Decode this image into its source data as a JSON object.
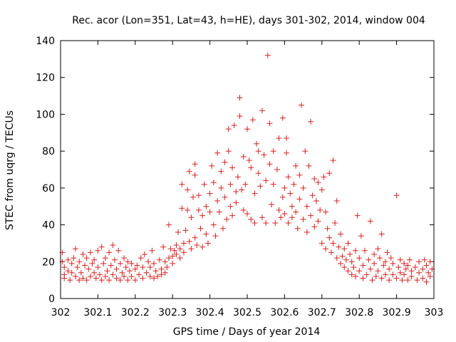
{
  "chart_data": {
    "type": "scatter",
    "title": "Rec. acor (Lon=351, Lat=43, h=HE), days 301-302, 2014, window 004",
    "xlabel": "GPS time / Days of year 2014",
    "ylabel": "STEC from uqrg / TECUs",
    "xlim": [
      302,
      303
    ],
    "ylim": [
      0,
      140
    ],
    "xticks": [
      302,
      302.1,
      302.2,
      302.3,
      302.4,
      302.5,
      302.6,
      302.7,
      302.8,
      302.9,
      303
    ],
    "xtick_labels": [
      "302",
      "302.1",
      "302.2",
      "302.3",
      "302.4",
      "302.5",
      "302.6",
      "302.7",
      "302.8",
      "302.9",
      "303"
    ],
    "yticks": [
      0,
      20,
      40,
      60,
      80,
      100,
      120,
      140
    ],
    "ytick_labels": [
      "0",
      "20",
      "40",
      "60",
      "80",
      "100",
      "120",
      "140"
    ],
    "grid": false,
    "marker": "+",
    "color": "#d62020",
    "series": [
      {
        "name": "STEC",
        "points": [
          [
            302.005,
            25
          ],
          [
            302.005,
            20
          ],
          [
            302.01,
            17
          ],
          [
            302.01,
            13
          ],
          [
            302.01,
            11
          ],
          [
            302.02,
            21
          ],
          [
            302.02,
            15
          ],
          [
            302.025,
            10
          ],
          [
            302.03,
            19
          ],
          [
            302.03,
            14
          ],
          [
            302.035,
            22
          ],
          [
            302.04,
            27
          ],
          [
            302.04,
            12
          ],
          [
            302.045,
            17
          ],
          [
            302.05,
            20
          ],
          [
            302.05,
            10
          ],
          [
            302.055,
            14
          ],
          [
            302.06,
            24
          ],
          [
            302.06,
            11
          ],
          [
            302.065,
            18
          ],
          [
            302.07,
            22
          ],
          [
            302.07,
            10
          ],
          [
            302.075,
            16
          ],
          [
            302.08,
            25
          ],
          [
            302.08,
            12
          ],
          [
            302.085,
            19
          ],
          [
            302.09,
            21
          ],
          [
            302.09,
            14
          ],
          [
            302.095,
            11
          ],
          [
            302.1,
            26
          ],
          [
            302.1,
            17
          ],
          [
            302.105,
            13
          ],
          [
            302.11,
            28
          ],
          [
            302.11,
            10
          ],
          [
            302.115,
            19
          ],
          [
            302.12,
            22
          ],
          [
            302.12,
            12
          ],
          [
            302.125,
            15
          ],
          [
            302.13,
            25
          ],
          [
            302.13,
            10
          ],
          [
            302.135,
            18
          ],
          [
            302.14,
            29
          ],
          [
            302.14,
            13
          ],
          [
            302.145,
            21
          ],
          [
            302.15,
            16
          ],
          [
            302.15,
            11
          ],
          [
            302.155,
            26
          ],
          [
            302.16,
            19
          ],
          [
            302.16,
            10
          ],
          [
            302.165,
            14
          ],
          [
            302.17,
            22
          ],
          [
            302.17,
            12
          ],
          [
            302.175,
            17
          ],
          [
            302.18,
            20
          ],
          [
            302.18,
            10
          ],
          [
            302.185,
            15
          ],
          [
            302.19,
            19
          ],
          [
            302.19,
            12
          ],
          [
            302.2,
            16
          ],
          [
            302.2,
            10
          ],
          [
            302.205,
            18
          ],
          [
            302.21,
            13
          ],
          [
            302.215,
            22
          ],
          [
            302.22,
            11
          ],
          [
            302.22,
            17
          ],
          [
            302.225,
            24
          ],
          [
            302.23,
            14
          ],
          [
            302.235,
            20
          ],
          [
            302.24,
            12
          ],
          [
            302.24,
            17
          ],
          [
            302.245,
            26
          ],
          [
            302.25,
            19
          ],
          [
            302.25,
            11
          ],
          [
            302.255,
            15
          ],
          [
            302.26,
            12
          ],
          [
            302.265,
            21
          ],
          [
            302.27,
            16
          ],
          [
            302.27,
            13
          ],
          [
            302.275,
            28
          ],
          [
            302.28,
            20
          ],
          [
            302.28,
            14
          ],
          [
            302.285,
            17
          ],
          [
            302.29,
            40
          ],
          [
            302.29,
            22
          ],
          [
            302.295,
            27
          ],
          [
            302.3,
            19
          ],
          [
            302.3,
            23
          ],
          [
            302.305,
            26
          ],
          [
            302.31,
            24
          ],
          [
            302.31,
            29
          ],
          [
            302.315,
            36
          ],
          [
            302.32,
            27
          ],
          [
            302.32,
            22
          ],
          [
            302.325,
            49
          ],
          [
            302.325,
            62
          ],
          [
            302.33,
            30
          ],
          [
            302.33,
            25
          ],
          [
            302.335,
            37
          ],
          [
            302.34,
            59
          ],
          [
            302.34,
            48
          ],
          [
            302.345,
            31
          ],
          [
            302.345,
            69
          ],
          [
            302.35,
            27
          ],
          [
            302.35,
            44
          ],
          [
            302.355,
            55
          ],
          [
            302.36,
            73
          ],
          [
            302.36,
            33
          ],
          [
            302.36,
            67
          ],
          [
            302.365,
            29
          ],
          [
            302.37,
            48
          ],
          [
            302.37,
            56
          ],
          [
            302.375,
            38
          ],
          [
            302.38,
            28
          ],
          [
            302.38,
            45
          ],
          [
            302.385,
            62
          ],
          [
            302.39,
            50
          ],
          [
            302.39,
            35
          ],
          [
            302.395,
            30
          ],
          [
            302.4,
            57
          ],
          [
            302.4,
            47
          ],
          [
            302.405,
            72
          ],
          [
            302.41,
            63
          ],
          [
            302.41,
            40
          ],
          [
            302.415,
            34
          ],
          [
            302.42,
            79
          ],
          [
            302.42,
            53
          ],
          [
            302.425,
            47
          ],
          [
            302.43,
            69
          ],
          [
            302.43,
            60
          ],
          [
            302.435,
            38
          ],
          [
            302.44,
            74
          ],
          [
            302.44,
            55
          ],
          [
            302.445,
            43
          ],
          [
            302.45,
            92
          ],
          [
            302.45,
            80
          ],
          [
            302.455,
            62
          ],
          [
            302.455,
            50
          ],
          [
            302.46,
            71
          ],
          [
            302.46,
            45
          ],
          [
            302.465,
            94
          ],
          [
            302.47,
            58
          ],
          [
            302.47,
            52
          ],
          [
            302.475,
            66
          ],
          [
            302.48,
            99
          ],
          [
            302.48,
            109
          ],
          [
            302.485,
            59
          ],
          [
            302.49,
            77
          ],
          [
            302.49,
            48
          ],
          [
            302.495,
            62
          ],
          [
            302.5,
            92
          ],
          [
            302.5,
            46
          ],
          [
            302.505,
            75
          ],
          [
            302.51,
            71
          ],
          [
            302.51,
            43
          ],
          [
            302.515,
            97
          ],
          [
            302.52,
            57
          ],
          [
            302.52,
            41
          ],
          [
            302.525,
            84
          ],
          [
            302.53,
            80
          ],
          [
            302.53,
            68
          ],
          [
            302.535,
            61
          ],
          [
            302.54,
            102
          ],
          [
            302.54,
            44
          ],
          [
            302.545,
            78
          ],
          [
            302.55,
            64
          ],
          [
            302.55,
            41
          ],
          [
            302.555,
            132
          ],
          [
            302.56,
            95
          ],
          [
            302.56,
            73
          ],
          [
            302.565,
            51
          ],
          [
            302.57,
            80
          ],
          [
            302.57,
            62
          ],
          [
            302.575,
            41
          ],
          [
            302.58,
            70
          ],
          [
            302.585,
            87
          ],
          [
            302.585,
            48
          ],
          [
            302.59,
            44
          ],
          [
            302.595,
            98
          ],
          [
            302.595,
            55
          ],
          [
            302.6,
            60
          ],
          [
            302.6,
            46
          ],
          [
            302.605,
            79
          ],
          [
            302.605,
            87
          ],
          [
            302.61,
            66
          ],
          [
            302.61,
            41
          ],
          [
            302.615,
            57
          ],
          [
            302.62,
            50
          ],
          [
            302.62,
            44
          ],
          [
            302.625,
            62
          ],
          [
            302.63,
            72
          ],
          [
            302.63,
            47
          ],
          [
            302.635,
            38
          ],
          [
            302.64,
            67
          ],
          [
            302.64,
            54
          ],
          [
            302.645,
            105
          ],
          [
            302.65,
            60
          ],
          [
            302.65,
            43
          ],
          [
            302.655,
            80
          ],
          [
            302.66,
            50
          ],
          [
            302.66,
            36
          ],
          [
            302.665,
            72
          ],
          [
            302.67,
            96
          ],
          [
            302.67,
            45
          ],
          [
            302.675,
            56
          ],
          [
            302.68,
            65
          ],
          [
            302.68,
            39
          ],
          [
            302.685,
            53
          ],
          [
            302.69,
            63
          ],
          [
            302.69,
            42
          ],
          [
            302.695,
            48
          ],
          [
            302.7,
            59
          ],
          [
            302.7,
            30
          ],
          [
            302.705,
            66
          ],
          [
            302.71,
            47
          ],
          [
            302.71,
            27
          ],
          [
            302.715,
            38
          ],
          [
            302.72,
            68
          ],
          [
            302.72,
            33
          ],
          [
            302.725,
            25
          ],
          [
            302.73,
            75
          ],
          [
            302.73,
            30
          ],
          [
            302.735,
            41
          ],
          [
            302.74,
            53
          ],
          [
            302.74,
            22
          ],
          [
            302.745,
            28
          ],
          [
            302.75,
            35
          ],
          [
            302.75,
            19
          ],
          [
            302.755,
            23
          ],
          [
            302.76,
            27
          ],
          [
            302.76,
            17
          ],
          [
            302.765,
            21
          ],
          [
            302.77,
            30
          ],
          [
            302.77,
            15
          ],
          [
            302.775,
            24
          ],
          [
            302.78,
            20
          ],
          [
            302.78,
            13
          ],
          [
            302.785,
            17
          ],
          [
            302.79,
            26
          ],
          [
            302.79,
            12
          ],
          [
            302.795,
            45
          ],
          [
            302.8,
            22
          ],
          [
            302.8,
            15
          ],
          [
            302.805,
            34
          ],
          [
            302.81,
            18
          ],
          [
            302.81,
            11
          ],
          [
            302.815,
            26
          ],
          [
            302.82,
            13
          ],
          [
            302.825,
            21
          ],
          [
            302.83,
            42
          ],
          [
            302.83,
            16
          ],
          [
            302.835,
            10
          ],
          [
            302.84,
            24
          ],
          [
            302.84,
            19
          ],
          [
            302.845,
            12
          ],
          [
            302.85,
            27
          ],
          [
            302.85,
            15
          ],
          [
            302.855,
            22
          ],
          [
            302.86,
            35
          ],
          [
            302.86,
            11
          ],
          [
            302.865,
            18
          ],
          [
            302.87,
            20
          ],
          [
            302.87,
            13
          ],
          [
            302.875,
            25
          ],
          [
            302.88,
            16
          ],
          [
            302.88,
            10
          ],
          [
            302.885,
            22
          ],
          [
            302.89,
            13
          ],
          [
            302.89,
            19
          ],
          [
            302.9,
            56
          ],
          [
            302.9,
            11
          ],
          [
            302.905,
            17
          ],
          [
            302.91,
            21
          ],
          [
            302.91,
            14
          ],
          [
            302.915,
            10
          ],
          [
            302.92,
            19
          ],
          [
            302.92,
            13
          ],
          [
            302.925,
            16
          ],
          [
            302.93,
            18
          ],
          [
            302.93,
            10
          ],
          [
            302.935,
            21
          ],
          [
            302.94,
            15
          ],
          [
            302.94,
            12
          ],
          [
            302.95,
            17
          ],
          [
            302.955,
            10
          ],
          [
            302.96,
            20
          ],
          [
            302.96,
            14
          ],
          [
            302.97,
            16
          ],
          [
            302.97,
            11
          ],
          [
            302.975,
            21
          ],
          [
            302.98,
            18
          ],
          [
            302.98,
            9
          ],
          [
            302.985,
            14
          ],
          [
            302.99,
            20
          ],
          [
            302.99,
            12
          ],
          [
            302.995,
            16
          ]
        ]
      }
    ]
  }
}
